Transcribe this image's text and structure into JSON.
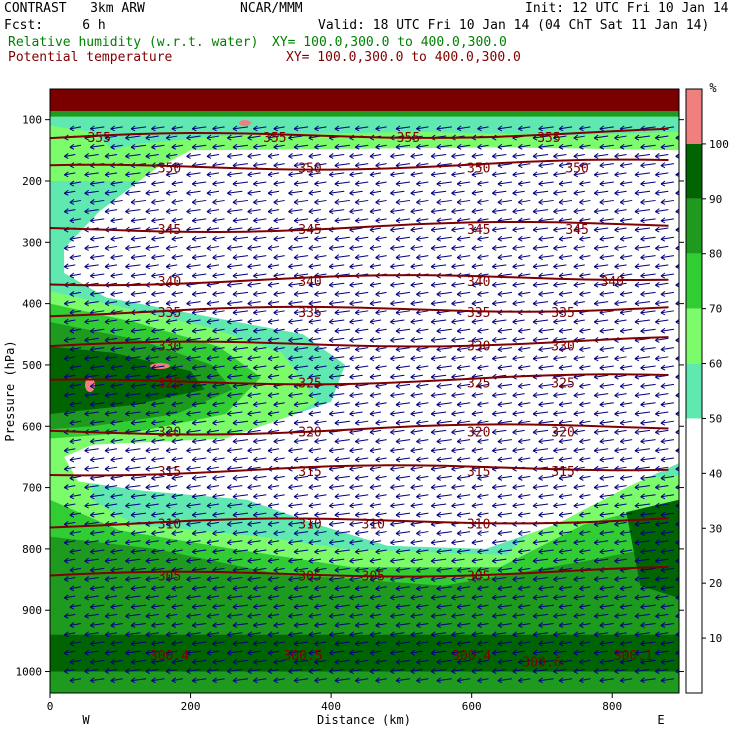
{
  "header": {
    "model": "CONTRAST   3km ARW",
    "org": "NCAR/MMM",
    "init": "Init: 12 UTC Fri 10 Jan 14",
    "fcst": "Fcst:     6 h",
    "valid": "Valid: 18 UTC Fri 10 Jan 14 (04 ChT Sat 11 Jan 14)",
    "rh_label": "Relative humidity (w.r.t. water)",
    "rh_xy": "XY= 100.0,300.0 to 400.0,300.0",
    "theta_label": "Potential temperature",
    "theta_xy": "XY= 100.0,300.0 to 400.0,300.0"
  },
  "colors": {
    "rh_90_100": "#006400",
    "rh_80_90": "#1e9a1e",
    "rh_70_80": "#32cd32",
    "rh_60_70": "#7cfc6a",
    "rh_50_60": "#5fe8b0",
    "rh_100_plus": "#f08080",
    "theta": "#800000",
    "wind": "#00007f",
    "top_band": "#7a0000"
  },
  "chart_data": {
    "type": "heatmap",
    "xlabel": "Distance (km)",
    "ylabel": "Pressure (hPa)",
    "x_ticks": [
      "0",
      "200",
      "400",
      "600",
      "800"
    ],
    "x_tick_values": [
      0,
      200,
      400,
      600,
      800
    ],
    "xlim": [
      0,
      895
    ],
    "y_ticks": [
      "100",
      "200",
      "300",
      "400",
      "500",
      "600",
      "700",
      "800",
      "900",
      "1000"
    ],
    "y_tick_values": [
      100,
      200,
      300,
      400,
      500,
      600,
      700,
      800,
      900,
      1000
    ],
    "ylim": [
      50,
      1035
    ],
    "x_end_labels": {
      "left": "W",
      "right": "E"
    },
    "colorbar": {
      "unit": "%",
      "levels": [
        "10",
        "20",
        "30",
        "40",
        "50",
        "60",
        "70",
        "80",
        "90",
        "100"
      ],
      "level_values": [
        10,
        20,
        30,
        40,
        50,
        60,
        70,
        80,
        90,
        100
      ]
    },
    "theta_contours": [
      {
        "value": 355,
        "p": 130,
        "labels": [
          [
            "355",
            70
          ],
          [
            "355",
            320
          ],
          [
            "355",
            510
          ],
          [
            "355",
            710
          ]
        ]
      },
      {
        "value": 350,
        "p": 180,
        "labels": [
          [
            "350",
            170
          ],
          [
            "350",
            370
          ],
          [
            "350",
            610
          ],
          [
            "350",
            750
          ]
        ]
      },
      {
        "value": 345,
        "p": 280,
        "labels": [
          [
            "345",
            170
          ],
          [
            "345",
            370
          ],
          [
            "345",
            610
          ],
          [
            "345",
            750
          ]
        ]
      },
      {
        "value": 340,
        "p": 365,
        "labels": [
          [
            "340",
            170
          ],
          [
            "340",
            370
          ],
          [
            "340",
            610
          ],
          [
            "340",
            800
          ]
        ]
      },
      {
        "value": 335,
        "p": 415,
        "labels": [
          [
            "335",
            170
          ],
          [
            "335",
            370
          ],
          [
            "335",
            610
          ],
          [
            "335",
            730
          ]
        ]
      },
      {
        "value": 330,
        "p": 470,
        "labels": [
          [
            "330",
            170
          ],
          [
            "330",
            610
          ],
          [
            "330",
            730
          ]
        ]
      },
      {
        "value": 325,
        "p": 530,
        "labels": [
          [
            "325",
            170
          ],
          [
            "325",
            370
          ],
          [
            "325",
            610
          ],
          [
            "325",
            730
          ]
        ]
      },
      {
        "value": 320,
        "p": 610,
        "labels": [
          [
            "320",
            170
          ],
          [
            "320",
            370
          ],
          [
            "320",
            610
          ],
          [
            "320",
            730
          ]
        ]
      },
      {
        "value": 315,
        "p": 675,
        "labels": [
          [
            "315",
            170
          ],
          [
            "315",
            370
          ],
          [
            "315",
            610
          ],
          [
            "315",
            730
          ]
        ]
      },
      {
        "value": 310,
        "p": 760,
        "labels": [
          [
            "310",
            170
          ],
          [
            "310",
            370
          ],
          [
            "310",
            460
          ],
          [
            "310",
            610
          ]
        ]
      },
      {
        "value": 305,
        "p": 845,
        "labels": [
          [
            "305",
            170
          ],
          [
            "305",
            370
          ],
          [
            "305",
            460
          ],
          [
            "305",
            610
          ]
        ]
      }
    ],
    "low_labels": [
      {
        "text": "300.4",
        "x": 170,
        "p": 975
      },
      {
        "text": "300.5",
        "x": 360,
        "p": 975
      },
      {
        "text": "300.4",
        "x": 600,
        "p": 975
      },
      {
        "text": "300.6",
        "x": 700,
        "p": 985
      },
      {
        "text": "300.1",
        "x": 830,
        "p": 975
      }
    ]
  }
}
